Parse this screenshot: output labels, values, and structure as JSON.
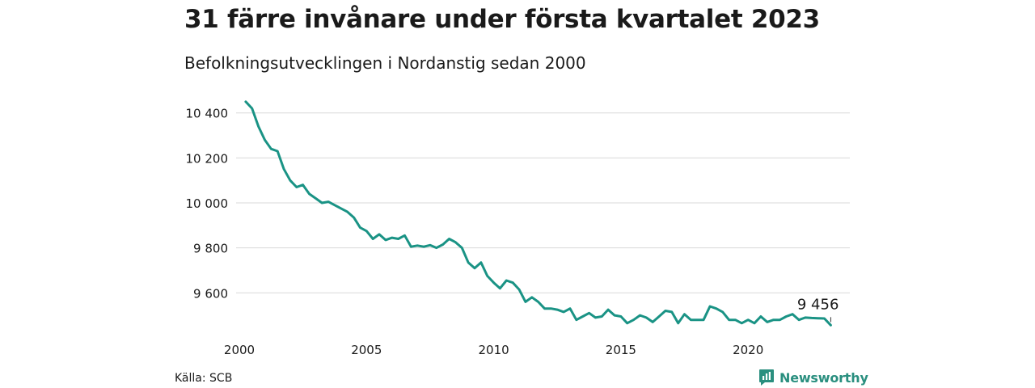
{
  "header": {
    "title": "31 färre invånare under första kvartalet 2023",
    "subtitle": "Befolkningsutvecklingen i Nordanstig sedan 2000"
  },
  "footer": {
    "source": "Källa: SCB",
    "brand": "Newsworthy"
  },
  "colors": {
    "line": "#1a9385",
    "grid": "#d9d9d9",
    "brand": "#2a8f7f"
  },
  "chart_data": {
    "type": "line",
    "title": "31 färre invånare under första kvartalet 2023",
    "subtitle": "Befolkningsutvecklingen i Nordanstig sedan 2000",
    "xlabel": "",
    "ylabel": "",
    "xlim": [
      2000,
      2024
    ],
    "ylim": [
      9450,
      10460
    ],
    "yticks": [
      9600,
      9800,
      10000,
      10200,
      10400
    ],
    "ytick_labels": [
      "9 600",
      "9 800",
      "10 000",
      "10 200",
      "10 400"
    ],
    "xticks": [
      2000,
      2005,
      2010,
      2015,
      2020
    ],
    "xtick_labels": [
      "2000",
      "2005",
      "2010",
      "2015",
      "2020"
    ],
    "grid": "horizontal",
    "annotation": {
      "label": "9 456",
      "x": 2023.25,
      "y": 9456
    },
    "series": [
      {
        "x": [
          2000.25,
          2000.5,
          2000.75,
          2001.0,
          2001.25,
          2001.5,
          2001.75,
          2002.0,
          2002.25,
          2002.5,
          2002.75,
          2003.0,
          2003.25,
          2003.5,
          2003.75,
          2004.0,
          2004.25,
          2004.5,
          2004.75,
          2005.0,
          2005.25,
          2005.5,
          2005.75,
          2006.0,
          2006.25,
          2006.5,
          2006.75,
          2007.0,
          2007.25,
          2007.5,
          2007.75,
          2008.0,
          2008.25,
          2008.5,
          2008.75,
          2009.0,
          2009.25,
          2009.5,
          2009.75,
          2010.0,
          2010.25,
          2010.5,
          2010.75,
          2011.0,
          2011.25,
          2011.5,
          2011.75,
          2012.0,
          2012.25,
          2012.5,
          2012.75,
          2013.0,
          2013.25,
          2013.5,
          2013.75,
          2014.0,
          2014.25,
          2014.5,
          2014.75,
          2015.0,
          2015.25,
          2015.5,
          2015.75,
          2016.0,
          2016.25,
          2016.5,
          2016.75,
          2017.0,
          2017.25,
          2017.5,
          2017.75,
          2018.0,
          2018.25,
          2018.5,
          2018.75,
          2019.0,
          2019.25,
          2019.5,
          2019.75,
          2020.0,
          2020.25,
          2020.5,
          2020.75,
          2021.0,
          2021.25,
          2021.5,
          2021.75,
          2022.0,
          2022.25,
          2022.5,
          2022.75,
          2023.0,
          2023.25
        ],
        "values": [
          10450,
          10420,
          10340,
          10280,
          10240,
          10230,
          10150,
          10100,
          10070,
          10080,
          10040,
          10020,
          10000,
          10005,
          9990,
          9975,
          9960,
          9935,
          9890,
          9875,
          9840,
          9860,
          9835,
          9845,
          9840,
          9855,
          9805,
          9810,
          9805,
          9812,
          9800,
          9815,
          9840,
          9825,
          9800,
          9735,
          9710,
          9735,
          9675,
          9645,
          9620,
          9655,
          9645,
          9615,
          9560,
          9580,
          9560,
          9530,
          9530,
          9525,
          9515,
          9530,
          9480,
          9495,
          9510,
          9490,
          9495,
          9525,
          9500,
          9495,
          9465,
          9480,
          9500,
          9490,
          9470,
          9495,
          9520,
          9515,
          9465,
          9505,
          9480,
          9480,
          9480,
          9540,
          9530,
          9515,
          9480,
          9480,
          9465,
          9480,
          9465,
          9495,
          9470,
          9480,
          9480,
          9495,
          9505,
          9480,
          9490,
          9488,
          9487,
          9486,
          9456
        ]
      }
    ]
  }
}
